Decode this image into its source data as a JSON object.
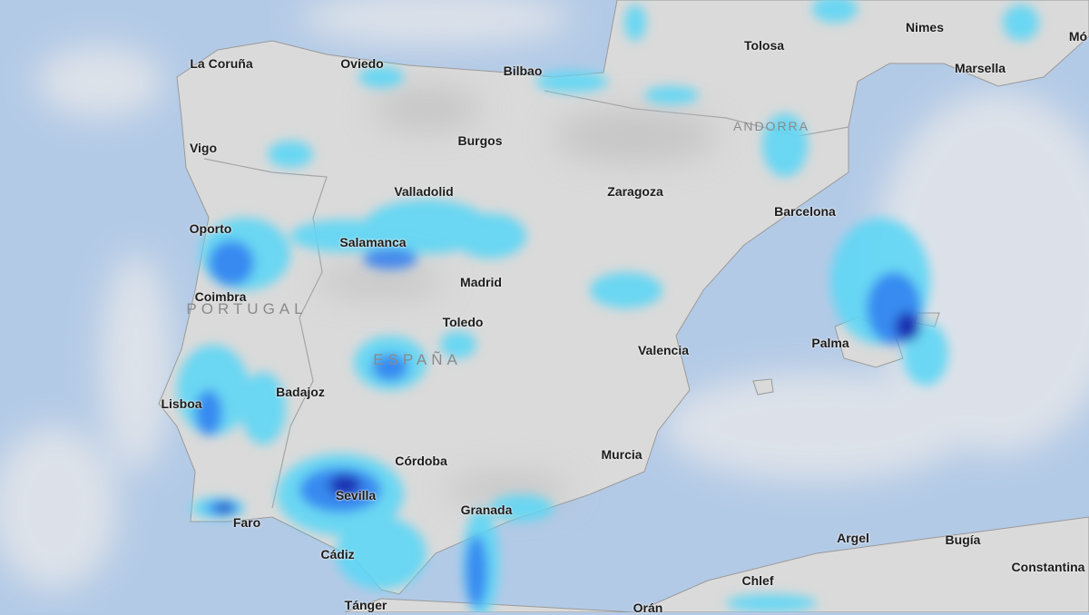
{
  "map": {
    "colors": {
      "sea": "#b3cae6",
      "land": "#dadada",
      "rain_light": "#5fd6f5",
      "rain_medium": "#2f7df0",
      "rain_heavy": "#1a1fa8"
    },
    "countries": [
      "PORTUGAL",
      "ESPAÑA",
      "ANDORRA"
    ],
    "cities": [
      "La Coruña",
      "Oviedo",
      "Bilbao",
      "Tolosa",
      "Nimes",
      "Marsella",
      "Mó",
      "Vigo",
      "Burgos",
      "Valladolid",
      "Zaragoza",
      "Barcelona",
      "Oporto",
      "Salamanca",
      "Madrid",
      "Coimbra",
      "Toledo",
      "Valencia",
      "Palma",
      "Lisboa",
      "Badajoz",
      "Córdoba",
      "Murcia",
      "Sevilla",
      "Granada",
      "Faro",
      "Cádiz",
      "Tánger",
      "Orán",
      "Argel",
      "Bugía",
      "Constantina",
      "Chlef"
    ]
  }
}
